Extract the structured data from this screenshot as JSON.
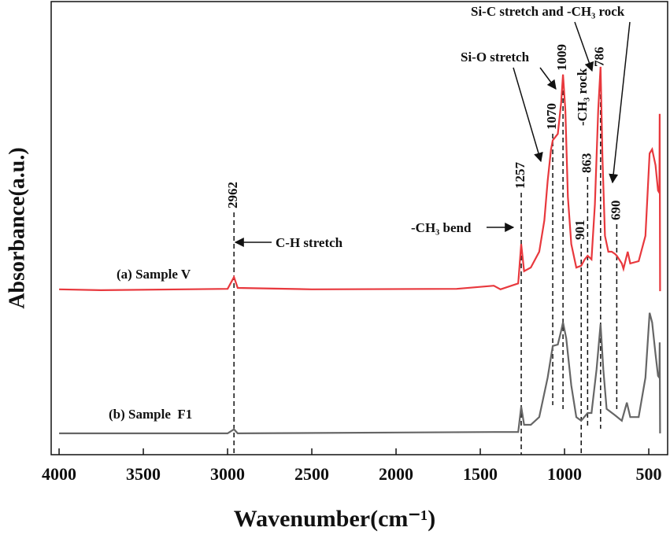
{
  "chart_data": {
    "type": "line",
    "xlabel": "Wavenumber(cm⁻¹)",
    "ylabel": "Absorbance(a.u.)",
    "xlim": [
      4047,
      388
    ],
    "ylim": [
      0,
      100
    ],
    "xticks": [
      4000,
      3500,
      3000,
      2500,
      2000,
      1500,
      1000,
      500
    ],
    "series": [
      {
        "name": "(a) Sample V",
        "color": "#e8383d",
        "x": [
          4000,
          3750,
          3000,
          2962,
          2940,
          2500,
          1640,
          1420,
          1380,
          1275,
          1257,
          1240,
          1200,
          1150,
          1120,
          1100,
          1080,
          1070,
          1040,
          1020,
          1009,
          995,
          980,
          960,
          930,
          901,
          880,
          863,
          840,
          820,
          800,
          786,
          775,
          760,
          740,
          720,
          700,
          690,
          660,
          650,
          625,
          610,
          560,
          520,
          495,
          480,
          460,
          445,
          437,
          435,
          433
        ],
        "values": [
          36.5,
          36.3,
          36.6,
          39.2,
          36.8,
          36.5,
          36.6,
          37.3,
          36.5,
          37.8,
          46.5,
          40.5,
          41.3,
          44.8,
          51.7,
          60.4,
          67.4,
          69.4,
          70.8,
          77.8,
          83.9,
          76.0,
          56.9,
          46.5,
          41.3,
          41.7,
          43.1,
          43.9,
          43.1,
          55.2,
          76.0,
          85.6,
          65.6,
          48.3,
          44.8,
          44.8,
          44.3,
          43.9,
          42.2,
          41.0,
          44.8,
          42.2,
          42.7,
          48.3,
          66.5,
          67.4,
          63.9,
          58.3,
          57.8,
          75.2,
          36.1
        ]
      },
      {
        "name": "(b) Sample  F1",
        "color": "#666666",
        "x": [
          4000,
          3000,
          2962,
          2940,
          1420,
          1275,
          1257,
          1240,
          1200,
          1150,
          1100,
          1070,
          1040,
          1020,
          1009,
          990,
          960,
          930,
          901,
          863,
          840,
          810,
          786,
          770,
          750,
          700,
          660,
          630,
          610,
          560,
          520,
          495,
          480,
          460,
          445,
          437,
          435,
          433
        ],
        "values": [
          4.7,
          4.7,
          5.6,
          4.7,
          5.0,
          5.0,
          10.6,
          6.6,
          6.6,
          8.3,
          17.0,
          24.0,
          24.3,
          27.4,
          29.2,
          25.7,
          15.3,
          8.3,
          7.5,
          9.2,
          9.2,
          18.8,
          28.8,
          18.8,
          10.1,
          8.7,
          7.5,
          11.5,
          8.3,
          8.3,
          17.0,
          31.3,
          29.2,
          22.2,
          17.4,
          17.0,
          24.8,
          4.7
        ]
      }
    ],
    "peaks": [
      2962,
      1257,
      1070,
      1009,
      901,
      863,
      786,
      690
    ],
    "annotations": [
      "C-H stretch",
      "-CH₃ bend",
      "Si-O stretch",
      "-CH₃ rock",
      "Si-C stretch and -CH₃ rock"
    ]
  }
}
